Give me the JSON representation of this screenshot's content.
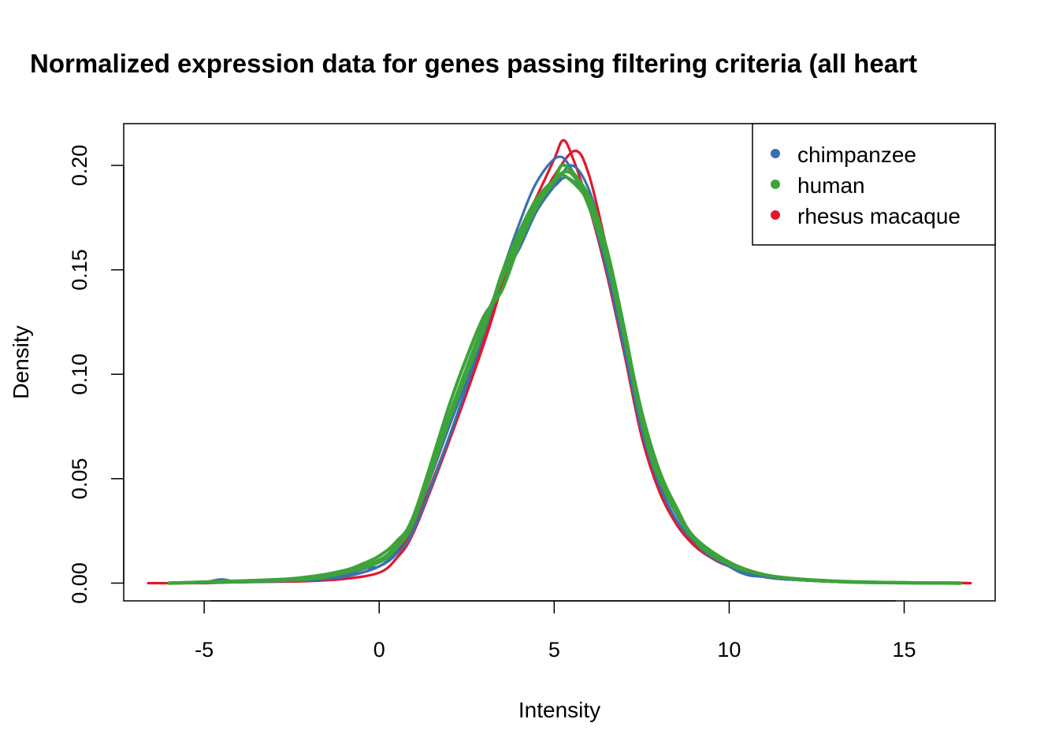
{
  "chart_data": {
    "type": "line",
    "title": "Normalized expression data for genes passing filtering criteria (all heart",
    "xlabel": "Intensity",
    "ylabel": "Density",
    "xlim": [
      -7.3,
      17.6
    ],
    "ylim": [
      -0.0085,
      0.22
    ],
    "xticks": [
      -5,
      0,
      5,
      10,
      15
    ],
    "xtick_labels": [
      "-5",
      "0",
      "5",
      "10",
      "15"
    ],
    "yticks": [
      0,
      0.05,
      0.1,
      0.15,
      0.2
    ],
    "ytick_labels": [
      "0.00",
      "0.05",
      "0.10",
      "0.15",
      "0.20"
    ],
    "legend": {
      "position": "top-right",
      "entries": [
        {
          "label": "chimpanzee",
          "color": "#3a6fb0"
        },
        {
          "label": "human",
          "color": "#3da33a"
        },
        {
          "label": "rhesus macaque",
          "color": "#e2172a"
        }
      ]
    },
    "series": [
      {
        "name": "rhesus macaque 1",
        "group": "rhesus macaque",
        "color": "#e2172a",
        "x": [
          -6.6,
          -5,
          -4,
          -3,
          -2,
          -1,
          0,
          0.5,
          1,
          2,
          3,
          3.5,
          4,
          4.5,
          5,
          5.25,
          5.5,
          6,
          6.5,
          7,
          7.5,
          8,
          8.5,
          9,
          9.5,
          10,
          11,
          12,
          13,
          14,
          15,
          16,
          16.9
        ],
        "y": [
          0,
          0,
          0.0005,
          0.0008,
          0.001,
          0.002,
          0.005,
          0.012,
          0.025,
          0.068,
          0.115,
          0.142,
          0.168,
          0.185,
          0.203,
          0.212,
          0.205,
          0.18,
          0.148,
          0.11,
          0.07,
          0.044,
          0.028,
          0.018,
          0.012,
          0.008,
          0.003,
          0.0015,
          0.0007,
          0.0004,
          0.0002,
          0.0001,
          0
        ]
      },
      {
        "name": "rhesus macaque 2",
        "group": "rhesus macaque",
        "color": "#e2172a",
        "x": [
          -6,
          -4,
          -2,
          -1,
          0,
          0.5,
          1,
          2,
          3,
          3.5,
          4,
          4.5,
          5,
          5.6,
          6,
          6.5,
          7,
          7.5,
          8,
          8.5,
          9,
          10,
          11,
          12,
          13,
          14,
          15,
          16.8
        ],
        "y": [
          0,
          0.0005,
          0.001,
          0.003,
          0.008,
          0.015,
          0.028,
          0.07,
          0.118,
          0.145,
          0.165,
          0.18,
          0.195,
          0.207,
          0.195,
          0.16,
          0.118,
          0.075,
          0.046,
          0.029,
          0.019,
          0.008,
          0.003,
          0.0015,
          0.0007,
          0.0004,
          0.0002,
          0
        ]
      },
      {
        "name": "chimpanzee 1",
        "group": "chimpanzee",
        "color": "#3a6fb0",
        "x": [
          -6,
          -5,
          -4.5,
          -4,
          -3,
          -2.8,
          -2,
          -1,
          -0.5,
          0,
          0.5,
          1,
          2,
          3,
          3.5,
          4,
          4.5,
          5.1,
          5.5,
          6,
          6.5,
          7,
          7.5,
          8,
          8.5,
          9,
          10,
          10.5,
          11,
          12,
          13,
          14,
          15,
          16.6
        ],
        "y": [
          0,
          0.0005,
          0.0018,
          0.0005,
          0.001,
          0.0018,
          0.0012,
          0.004,
          0.007,
          0.008,
          0.014,
          0.026,
          0.07,
          0.12,
          0.148,
          0.172,
          0.192,
          0.204,
          0.198,
          0.18,
          0.15,
          0.112,
          0.073,
          0.047,
          0.03,
          0.02,
          0.008,
          0.004,
          0.003,
          0.0015,
          0.0007,
          0.0004,
          0.0002,
          0
        ]
      },
      {
        "name": "chimpanzee 2",
        "group": "chimpanzee",
        "color": "#3a6fb0",
        "x": [
          -6,
          -4,
          -2,
          -1,
          0,
          0.5,
          1,
          2,
          3,
          3.5,
          4,
          4.5,
          5,
          5.5,
          6,
          6.5,
          7,
          7.5,
          8,
          9,
          10,
          11,
          12,
          13,
          14,
          16.6
        ],
        "y": [
          0,
          0.0005,
          0.0015,
          0.003,
          0.008,
          0.016,
          0.03,
          0.075,
          0.12,
          0.145,
          0.16,
          0.178,
          0.19,
          0.2,
          0.188,
          0.158,
          0.118,
          0.078,
          0.05,
          0.02,
          0.008,
          0.003,
          0.0015,
          0.0007,
          0.0003,
          0
        ]
      },
      {
        "name": "chimpanzee 3",
        "group": "chimpanzee",
        "color": "#3a6fb0",
        "x": [
          -6,
          -4,
          -2,
          -1,
          0,
          0.5,
          1,
          2,
          3,
          3.5,
          4,
          4.5,
          5,
          5.4,
          6,
          6.5,
          7,
          7.5,
          8,
          9,
          10,
          11,
          12,
          13,
          14,
          16.6
        ],
        "y": [
          0,
          0.0005,
          0.0015,
          0.004,
          0.01,
          0.018,
          0.032,
          0.078,
          0.122,
          0.148,
          0.168,
          0.184,
          0.19,
          0.194,
          0.182,
          0.152,
          0.115,
          0.076,
          0.049,
          0.02,
          0.008,
          0.003,
          0.0015,
          0.0007,
          0.0003,
          0
        ]
      },
      {
        "name": "human 1",
        "group": "human",
        "color": "#3da33a",
        "x": [
          -6,
          -5,
          -4,
          -3,
          -2,
          -1,
          -0.5,
          0,
          0.5,
          1,
          2,
          2.5,
          3,
          3.5,
          4,
          4.5,
          5,
          5.3,
          5.6,
          6,
          6.5,
          7,
          7.5,
          8,
          8.5,
          9,
          10,
          11,
          12,
          13,
          14,
          15,
          16.6
        ],
        "y": [
          0,
          0.0005,
          0.001,
          0.0015,
          0.003,
          0.006,
          0.009,
          0.013,
          0.02,
          0.033,
          0.085,
          0.108,
          0.128,
          0.14,
          0.162,
          0.18,
          0.192,
          0.197,
          0.194,
          0.18,
          0.155,
          0.12,
          0.082,
          0.054,
          0.036,
          0.022,
          0.01,
          0.004,
          0.002,
          0.001,
          0.0005,
          0.0002,
          0
        ]
      },
      {
        "name": "human 2",
        "group": "human",
        "color": "#3da33a",
        "x": [
          -6,
          -4,
          -2,
          -1,
          0,
          0.5,
          1,
          2,
          3,
          3.5,
          4,
          4.5,
          5,
          5.3,
          6,
          6.5,
          7,
          7.5,
          8,
          8.5,
          9,
          10,
          11,
          12,
          13,
          14,
          16.6
        ],
        "y": [
          0,
          0.001,
          0.0025,
          0.005,
          0.011,
          0.018,
          0.03,
          0.08,
          0.125,
          0.145,
          0.165,
          0.182,
          0.193,
          0.2,
          0.185,
          0.16,
          0.122,
          0.08,
          0.052,
          0.034,
          0.021,
          0.009,
          0.004,
          0.0018,
          0.0008,
          0.0003,
          0
        ]
      },
      {
        "name": "human 3",
        "group": "human",
        "color": "#3da33a",
        "x": [
          -6,
          -4,
          -2,
          -1,
          0,
          0.5,
          1,
          2,
          3,
          3.5,
          4,
          4.5,
          5,
          5.3,
          6,
          6.5,
          7,
          7.5,
          8,
          9,
          10,
          11,
          12,
          13,
          14,
          16.6
        ],
        "y": [
          0,
          0.0008,
          0.002,
          0.005,
          0.01,
          0.017,
          0.03,
          0.078,
          0.122,
          0.148,
          0.168,
          0.184,
          0.193,
          0.195,
          0.182,
          0.155,
          0.118,
          0.078,
          0.05,
          0.021,
          0.009,
          0.004,
          0.0018,
          0.0008,
          0.0003,
          0
        ]
      }
    ]
  }
}
